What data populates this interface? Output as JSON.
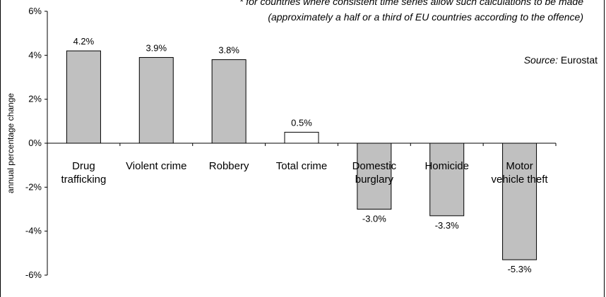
{
  "notes": {
    "line1": "* for countries where consistent time series allow such calculations to be made",
    "line2": "(approximately a half or a third of EU countries according to the offence)"
  },
  "source": {
    "label": "Source:",
    "value": "Eurostat"
  },
  "chart_data": {
    "type": "bar",
    "categories": [
      [
        "Drug",
        "trafficking"
      ],
      [
        "Violent crime"
      ],
      [
        "Robbery"
      ],
      [
        "Total crime"
      ],
      [
        "Domestic",
        "burglary"
      ],
      [
        "Homicide"
      ],
      [
        "Motor",
        "vehicle theft"
      ]
    ],
    "values": [
      4.2,
      3.9,
      3.8,
      0.5,
      -3.0,
      -3.3,
      -5.3
    ],
    "data_labels": [
      "4.2%",
      "3.9%",
      "3.8%",
      "0.5%",
      "-3.0%",
      "-3.3%",
      "-5.3%"
    ],
    "highlight_index": 3,
    "ylabel": "annual percentage change",
    "ylim": [
      -6,
      6
    ],
    "yticks": [
      -6,
      -4,
      -2,
      0,
      2,
      4,
      6
    ],
    "ytick_labels": [
      "-6%",
      "-4%",
      "-2%",
      "0%",
      "2%",
      "4%",
      "6%"
    ],
    "grid": false,
    "colors": {
      "bar": "#c0c0c0",
      "highlight_bar": "#ffffff",
      "stroke": "#000000"
    }
  }
}
